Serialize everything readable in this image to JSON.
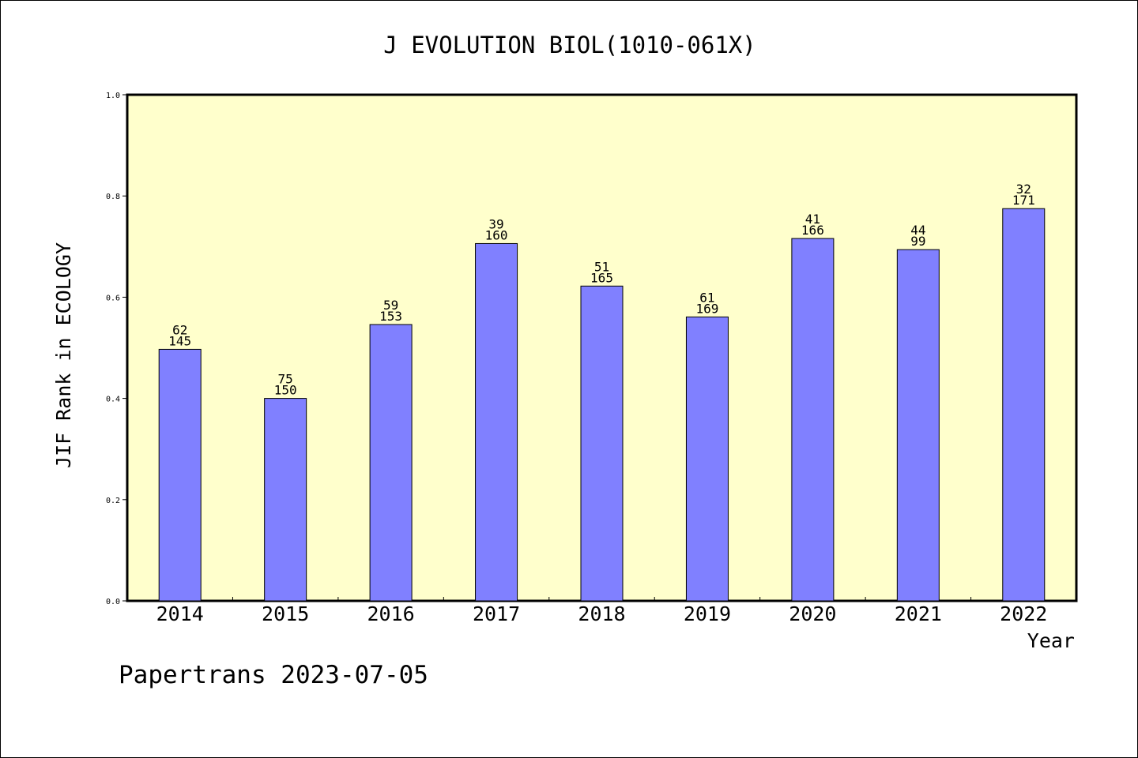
{
  "chart_data": {
    "type": "bar",
    "title": "J EVOLUTION BIOL(1010-061X)",
    "xlabel": "Year",
    "ylabel": "JIF Rank in ECOLOGY",
    "ylim": [
      0,
      1.0
    ],
    "yticks": [
      "0.0",
      "0.2",
      "0.4",
      "0.6",
      "0.8",
      "1.0"
    ],
    "categories": [
      "2014",
      "2015",
      "2016",
      "2017",
      "2018",
      "2019",
      "2020",
      "2021",
      "2022"
    ],
    "values": [
      0.497,
      0.4,
      0.546,
      0.706,
      0.622,
      0.561,
      0.716,
      0.694,
      0.775
    ],
    "ranks": [
      "62",
      "75",
      "59",
      "39",
      "51",
      "61",
      "41",
      "44",
      "32"
    ],
    "totals": [
      "145",
      "150",
      "153",
      "160",
      "165",
      "169",
      "166",
      "99",
      "171"
    ],
    "footer": "Papertrans 2023-07-05",
    "colors": {
      "plot_bg": "#ffffcc",
      "bar_fill": "#8080ff",
      "bar_stroke": "#000000",
      "axis": "#000000"
    }
  }
}
